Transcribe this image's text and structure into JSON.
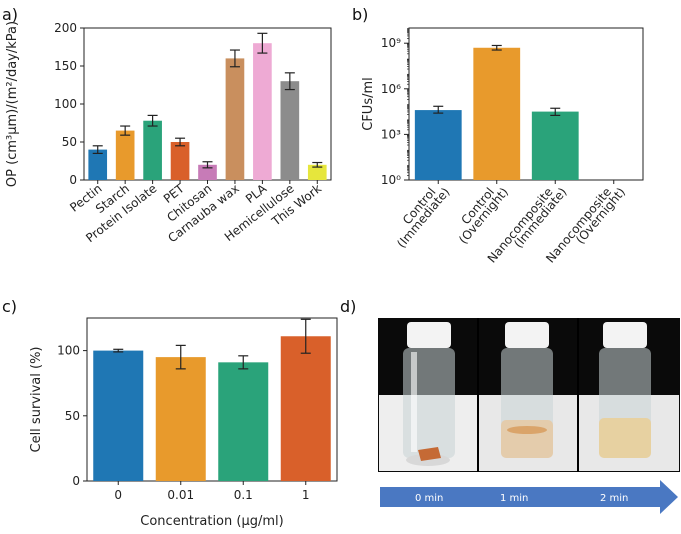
{
  "panels": {
    "a": {
      "label": "a)"
    },
    "b": {
      "label": "b)"
    },
    "c": {
      "label": "c)"
    },
    "d": {
      "label": "d)"
    }
  },
  "chart_data": [
    {
      "id": "a",
      "type": "bar",
      "ylabel": "OP (cm³μm)/(m²/day/kPa)",
      "ylim": [
        0,
        200
      ],
      "yticks": [
        0,
        50,
        100,
        150,
        200
      ],
      "categories": [
        "Pectin",
        "Starch",
        "Protein Isolate",
        "PET",
        "Chitosan",
        "Carnauba wax",
        "PLA",
        "Hemicellulose",
        "This Work"
      ],
      "values": [
        40,
        65,
        78,
        50,
        20,
        160,
        180,
        130,
        20
      ],
      "errors": [
        5,
        6,
        7,
        5,
        4,
        11,
        13,
        11,
        3
      ],
      "colors": [
        "#1f77b4",
        "#e89a2c",
        "#2aa37a",
        "#d9602a",
        "#c77bb7",
        "#c98f5e",
        "#eeaad4",
        "#8c8c8c",
        "#e6e63c"
      ]
    },
    {
      "id": "b",
      "type": "bar",
      "scale": "log",
      "ylabel": "CFUs/ml",
      "ylim_exp": [
        0,
        10
      ],
      "yticks_exp": [
        0,
        3,
        6,
        9
      ],
      "ytick_labels": [
        "10⁰",
        "10³",
        "10⁶",
        "10⁹"
      ],
      "categories": [
        [
          "Control",
          "(Immediate)"
        ],
        [
          "Control",
          "(Overnight)"
        ],
        [
          "Nanocomposite",
          "(Immediate)"
        ],
        [
          "Nanocomposite",
          "(Overnight)"
        ]
      ],
      "values_exp": [
        4.6,
        8.7,
        4.5,
        null
      ],
      "err_low_exp": [
        4.4,
        8.55,
        4.25,
        null
      ],
      "err_high_exp": [
        4.85,
        8.85,
        4.72,
        null
      ],
      "colors": [
        "#1f77b4",
        "#e89a2c",
        "#2aa37a",
        "#d9602a"
      ]
    },
    {
      "id": "c",
      "type": "bar",
      "xlabel": "Concentration (μg/ml)",
      "ylabel": "Cell survival (%)",
      "ylim": [
        0,
        125
      ],
      "yticks": [
        0,
        50,
        100
      ],
      "categories": [
        "0",
        "0.01",
        "0.1",
        "1"
      ],
      "values": [
        100,
        95,
        91,
        111
      ],
      "errors": [
        1,
        9,
        5,
        13
      ],
      "colors": [
        "#1f77b4",
        "#e89a2c",
        "#2aa37a",
        "#d9602a"
      ]
    }
  ],
  "photo": {
    "times": [
      "0 min",
      "1 min",
      "2 min"
    ]
  }
}
